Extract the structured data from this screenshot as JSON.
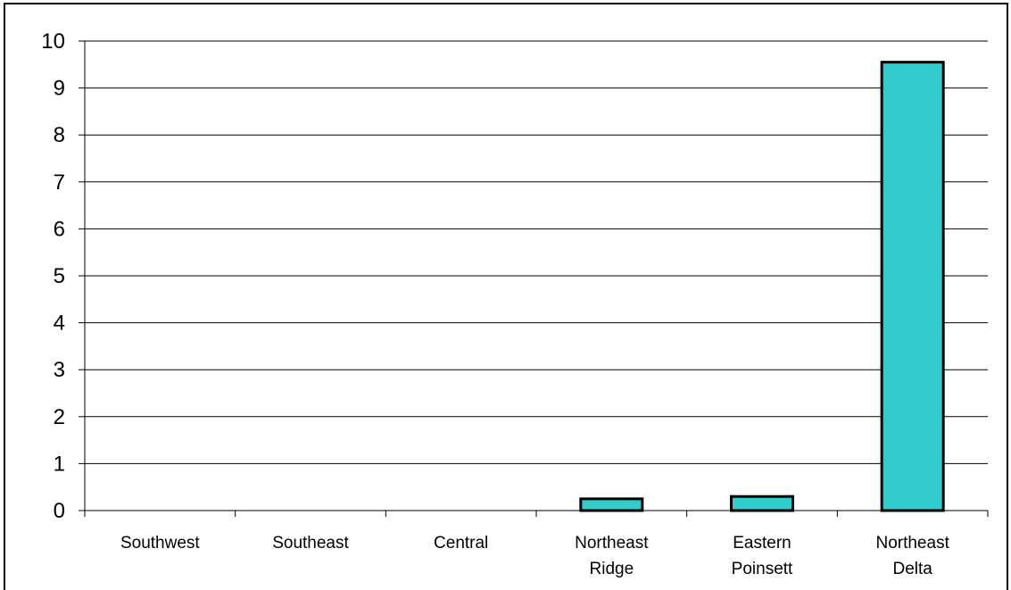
{
  "chart_data": {
    "type": "bar",
    "categories": [
      [
        "Southwest"
      ],
      [
        "Southeast"
      ],
      [
        "Central"
      ],
      [
        "Northeast",
        "Ridge"
      ],
      [
        "Eastern",
        "Poinsett"
      ],
      [
        "Northeast",
        "Delta"
      ]
    ],
    "values": [
      0,
      0,
      0,
      0.25,
      0.3,
      9.55
    ],
    "ylim": [
      0,
      10
    ],
    "yticks": [
      0,
      1,
      2,
      3,
      4,
      5,
      6,
      7,
      8,
      9,
      10
    ],
    "grid": true,
    "legend": "none",
    "title": "",
    "xlabel": "",
    "ylabel": "",
    "colors": {
      "bar_fill": "#33CCCC",
      "bar_stroke": "#000000",
      "grid": "#000000",
      "axis": "#000000"
    }
  }
}
